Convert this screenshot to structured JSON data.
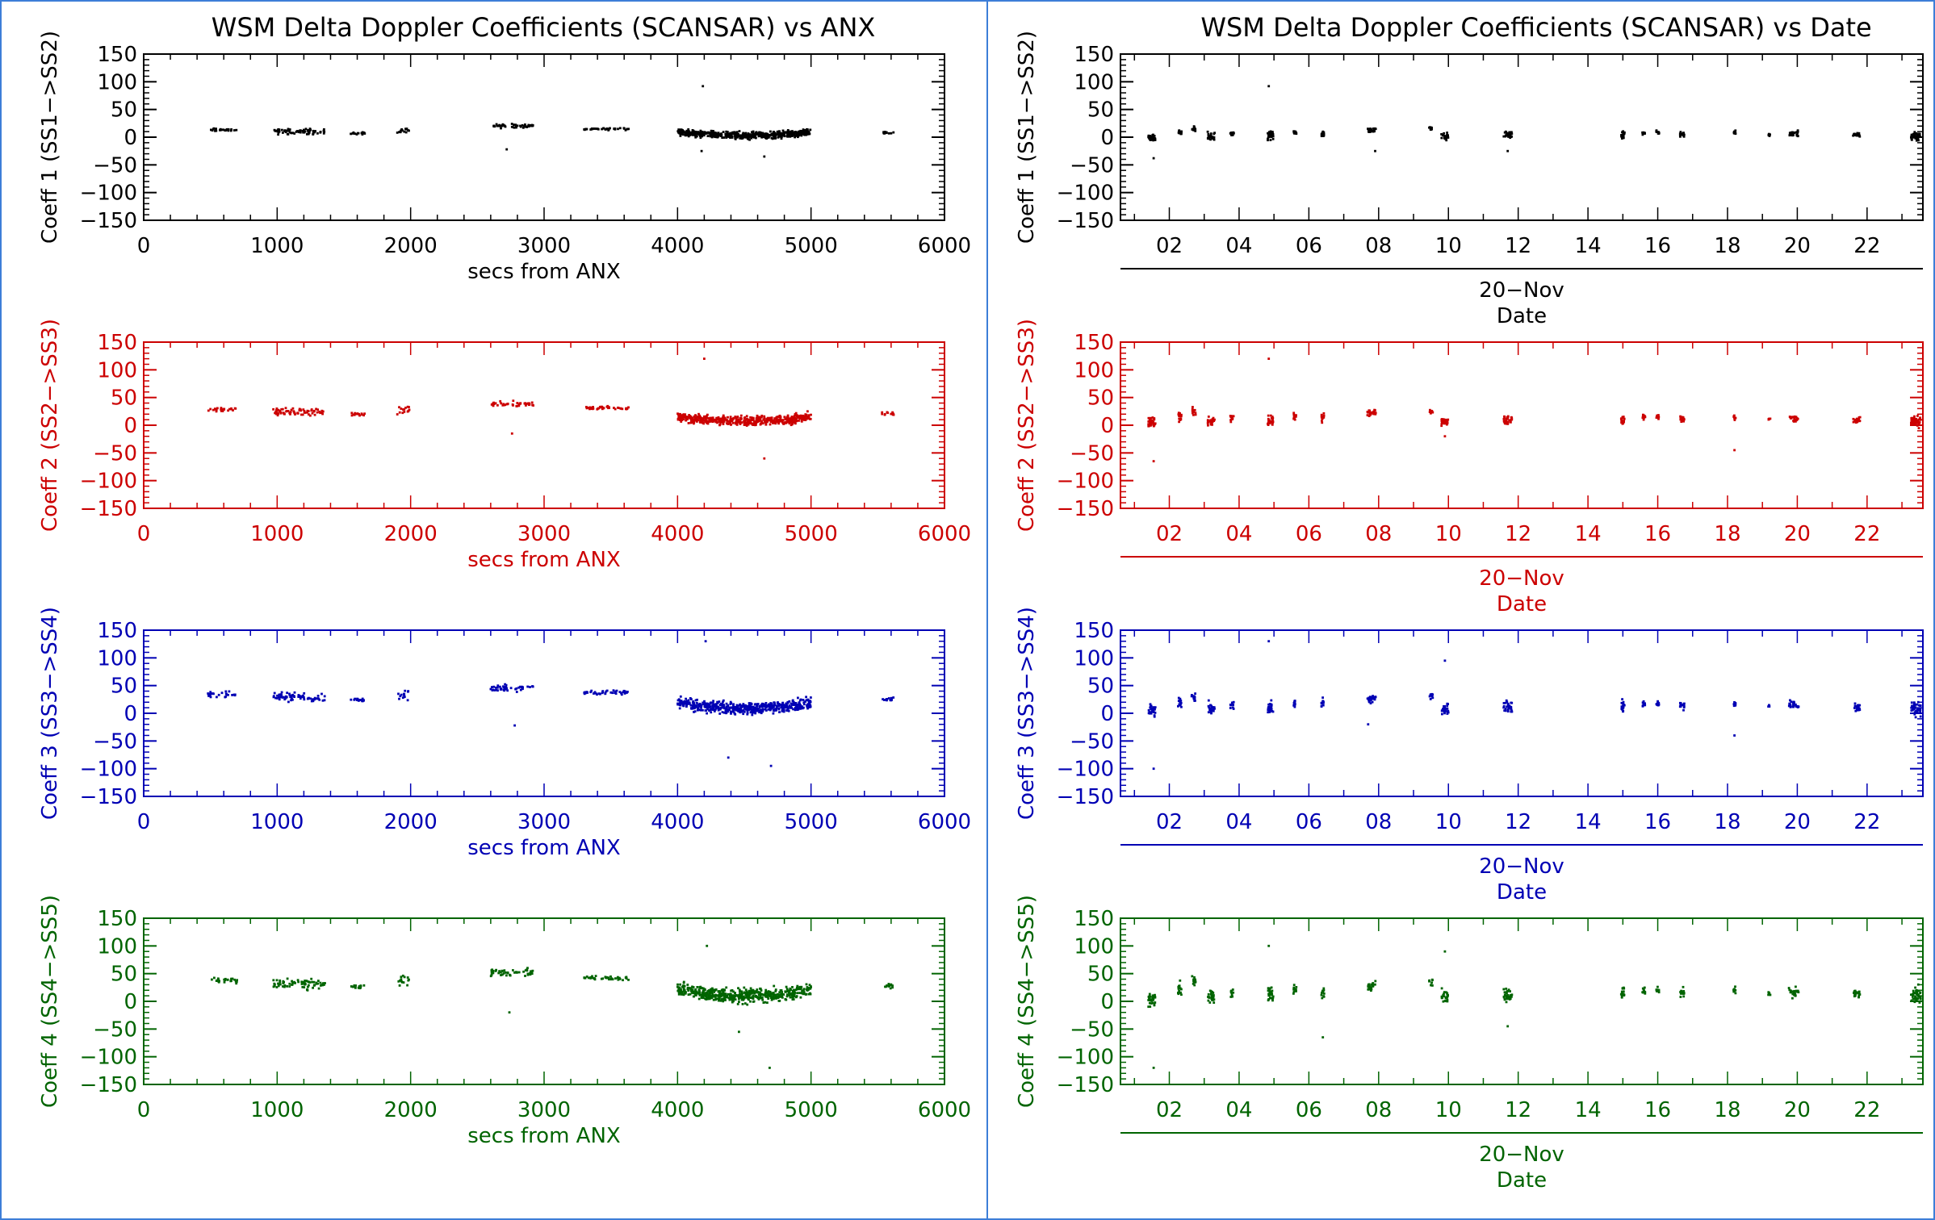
{
  "colors": {
    "background": "#ffffff",
    "frame": "#3d7ed8",
    "row_colors": [
      "#000000",
      "#cc0000",
      "#0000b4",
      "#006400"
    ]
  },
  "panels": [
    {
      "id": "anx",
      "title": "WSM Delta Doppler Coefficients (SCANSAR) vs ANX"
    },
    {
      "id": "date",
      "title": "WSM Delta Doppler Coefficients (SCANSAR) vs Date"
    }
  ],
  "chart_data": [
    {
      "type": "scatter",
      "panel": "anx",
      "xlabel": "secs from ANX",
      "xlim": [
        0,
        6000
      ],
      "xticks": [
        "0",
        "1000",
        "2000",
        "3000",
        "4000",
        "5000",
        "6000"
      ],
      "ylim": [
        -150,
        150
      ],
      "yticks": [
        "150",
        "100",
        "50",
        "0",
        "−50",
        "−100",
        "−150"
      ],
      "segments": [
        {
          "x": [
            480,
            700
          ],
          "base": 13,
          "spread": 4,
          "n": 25
        },
        {
          "x": [
            970,
            1360
          ],
          "base": 10,
          "spread": 7,
          "n": 70
        },
        {
          "x": [
            1550,
            1660
          ],
          "base": 7,
          "spread": 3,
          "n": 15
        },
        {
          "x": [
            1900,
            1990
          ],
          "base": 12,
          "spread": 9,
          "n": 14
        },
        {
          "x": [
            2600,
            2920
          ],
          "base": 20,
          "spread": 5,
          "n": 45
        },
        {
          "x": [
            3300,
            3640
          ],
          "base": 15,
          "spread": 3,
          "n": 40
        },
        {
          "x": [
            4000,
            5000
          ],
          "base": 6,
          "spread": 9,
          "n": 520
        },
        {
          "x": [
            5530,
            5620
          ],
          "base": 8,
          "spread": 3,
          "n": 12
        }
      ],
      "rows": [
        {
          "ylabel": "Coeff 1 (SS1−>SS2)",
          "scale": 1.0,
          "offset": 0,
          "outliers": [
            [
              4190,
              92
            ],
            [
              4180,
              -25
            ],
            [
              4650,
              -35
            ],
            [
              2720,
              -22
            ]
          ]
        },
        {
          "ylabel": "Coeff 2 (SS2−>SS3)",
          "scale": 1.4,
          "offset": 10,
          "outliers": [
            [
              4200,
              120
            ],
            [
              4650,
              -60
            ],
            [
              2760,
              -15
            ]
          ]
        },
        {
          "ylabel": "Coeff 3 (SS3−>SS4)",
          "scale": 1.7,
          "offset": 12,
          "outliers": [
            [
              4210,
              130
            ],
            [
              4700,
              -95
            ],
            [
              4380,
              -80
            ],
            [
              2780,
              -22
            ]
          ]
        },
        {
          "ylabel": "Coeff 4 (SS4−>SS5)",
          "scale": 2.0,
          "offset": 12,
          "outliers": [
            [
              4220,
              100
            ],
            [
              4690,
              -120
            ],
            [
              4460,
              -55
            ],
            [
              2740,
              -20
            ]
          ]
        }
      ]
    },
    {
      "type": "scatter",
      "panel": "date",
      "xlabel": "20−Nov",
      "xlabel2": "Date",
      "xlim": [
        0.6,
        23.6
      ],
      "xticks": [
        "02",
        "04",
        "06",
        "08",
        "10",
        "12",
        "14",
        "16",
        "18",
        "20",
        "22"
      ],
      "xtick_values": [
        2,
        4,
        6,
        8,
        10,
        12,
        14,
        16,
        18,
        20,
        22
      ],
      "ylim": [
        -150,
        150
      ],
      "yticks": [
        "150",
        "100",
        "50",
        "0",
        "−50",
        "−100",
        "−150"
      ],
      "clusters": [
        {
          "x": 1.5,
          "w": 0.1,
          "base": 0,
          "spread": 10,
          "n": 30
        },
        {
          "x": 2.3,
          "w": 0.05,
          "base": 8,
          "spread": 10,
          "n": 14
        },
        {
          "x": 2.7,
          "w": 0.06,
          "base": 15,
          "spread": 8,
          "n": 12
        },
        {
          "x": 3.2,
          "w": 0.1,
          "base": 2,
          "spread": 9,
          "n": 24
        },
        {
          "x": 3.8,
          "w": 0.05,
          "base": 6,
          "spread": 7,
          "n": 10
        },
        {
          "x": 4.9,
          "w": 0.08,
          "base": 3,
          "spread": 10,
          "n": 28
        },
        {
          "x": 5.6,
          "w": 0.04,
          "base": 8,
          "spread": 6,
          "n": 10
        },
        {
          "x": 6.4,
          "w": 0.04,
          "base": 6,
          "spread": 8,
          "n": 12
        },
        {
          "x": 7.8,
          "w": 0.12,
          "base": 12,
          "spread": 6,
          "n": 26
        },
        {
          "x": 9.5,
          "w": 0.05,
          "base": 15,
          "spread": 5,
          "n": 10
        },
        {
          "x": 9.9,
          "w": 0.1,
          "base": 2,
          "spread": 8,
          "n": 24
        },
        {
          "x": 11.7,
          "w": 0.12,
          "base": 4,
          "spread": 9,
          "n": 30
        },
        {
          "x": 15.0,
          "w": 0.05,
          "base": 5,
          "spread": 10,
          "n": 18
        },
        {
          "x": 15.6,
          "w": 0.04,
          "base": 7,
          "spread": 5,
          "n": 10
        },
        {
          "x": 16.0,
          "w": 0.04,
          "base": 8,
          "spread": 6,
          "n": 10
        },
        {
          "x": 16.7,
          "w": 0.06,
          "base": 5,
          "spread": 7,
          "n": 16
        },
        {
          "x": 18.2,
          "w": 0.03,
          "base": 8,
          "spread": 5,
          "n": 8
        },
        {
          "x": 19.2,
          "w": 0.03,
          "base": 5,
          "spread": 3,
          "n": 5
        },
        {
          "x": 19.9,
          "w": 0.14,
          "base": 6,
          "spread": 7,
          "n": 24
        },
        {
          "x": 21.7,
          "w": 0.1,
          "base": 4,
          "spread": 6,
          "n": 20
        },
        {
          "x": 23.4,
          "w": 0.14,
          "base": 2,
          "spread": 12,
          "n": 40
        }
      ],
      "rows": [
        {
          "ylabel": "Coeff 1 (SS1−>SS2)",
          "scale": 1.0,
          "offset": 0,
          "outliers": [
            [
              4.85,
              92
            ],
            [
              1.55,
              -38
            ],
            [
              11.7,
              -25
            ],
            [
              7.9,
              -25
            ]
          ]
        },
        {
          "ylabel": "Coeff 2 (SS2−>SS3)",
          "scale": 1.4,
          "offset": 8,
          "outliers": [
            [
              4.85,
              120
            ],
            [
              1.55,
              -65
            ],
            [
              18.2,
              -45
            ],
            [
              9.9,
              -20
            ]
          ]
        },
        {
          "ylabel": "Coeff 3 (SS3−>SS4)",
          "scale": 1.7,
          "offset": 10,
          "outliers": [
            [
              4.85,
              130
            ],
            [
              1.55,
              -100
            ],
            [
              18.2,
              -40
            ],
            [
              9.9,
              95
            ],
            [
              7.7,
              -20
            ]
          ]
        },
        {
          "ylabel": "Coeff 4 (SS4−>SS5)",
          "scale": 2.0,
          "offset": 10,
          "outliers": [
            [
              4.85,
              100
            ],
            [
              1.55,
              -120
            ],
            [
              6.4,
              -65
            ],
            [
              9.9,
              90
            ],
            [
              11.7,
              -45
            ]
          ]
        }
      ]
    }
  ]
}
